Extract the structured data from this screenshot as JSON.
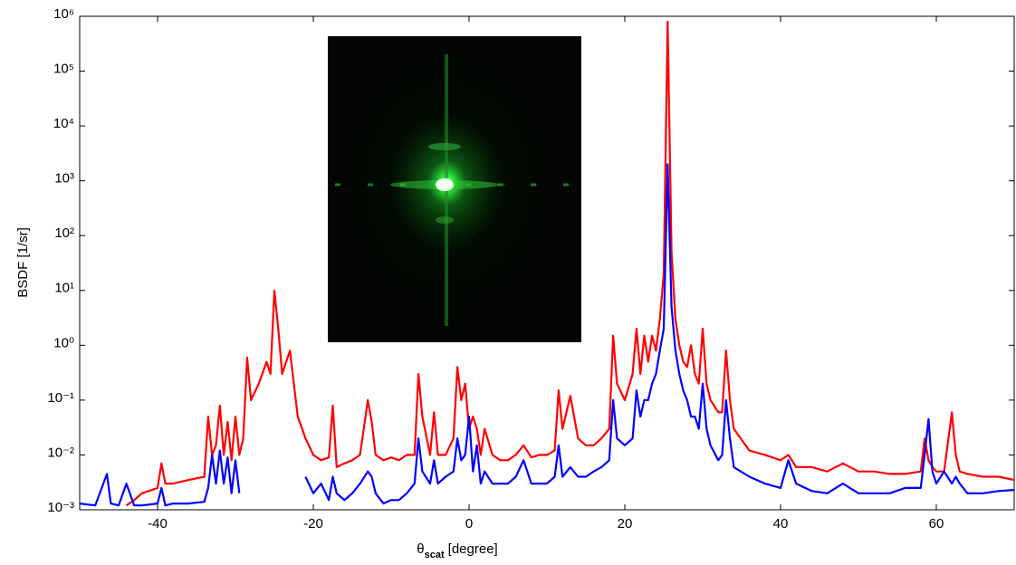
{
  "chart_data": {
    "type": "line",
    "y_label": "BSDF [1/sr]",
    "x_label": {
      "symbol": "θ",
      "subscript": "scat",
      "unit": "[degree]"
    },
    "y_scale": "log",
    "xlim": [
      -50,
      70
    ],
    "xticks": [
      -40,
      -20,
      0,
      20,
      40,
      60
    ],
    "ylim": [
      0.001,
      1000000
    ],
    "yticks": [
      {
        "value": 0.001,
        "label": "10⁻³"
      },
      {
        "value": 0.01,
        "label": "10⁻²"
      },
      {
        "value": 0.1,
        "label": "10⁻¹"
      },
      {
        "value": 1,
        "label": "10⁰"
      },
      {
        "value": 10,
        "label": "10¹"
      },
      {
        "value": 100,
        "label": "10²"
      },
      {
        "value": 1000,
        "label": "10³"
      },
      {
        "value": 10000,
        "label": "10⁴"
      },
      {
        "value": 100000,
        "label": "10⁵"
      },
      {
        "value": 1000000,
        "label": "10⁶"
      }
    ],
    "x": [
      -50,
      -48,
      -46.5,
      -46,
      -45,
      -44,
      -43,
      -42,
      -40,
      -39.5,
      -39,
      -38,
      -36,
      -34,
      -33.5,
      -33,
      -32.5,
      -32,
      -31.5,
      -31,
      -30.5,
      -30,
      -29.5,
      -29,
      -28.5,
      -28,
      -27,
      -26,
      -25.5,
      -25,
      -24.5,
      -24,
      -23,
      -22,
      -21,
      -20,
      -19,
      -18,
      -17.5,
      -17,
      -16,
      -15,
      -14,
      -13,
      -12.5,
      -12,
      -11,
      -10,
      -9,
      -8,
      -7,
      -6.5,
      -6,
      -5,
      -4.5,
      -4,
      -3,
      -2,
      -1.5,
      -1,
      -0.5,
      0,
      0.5,
      1,
      1.5,
      2,
      3,
      4,
      5,
      6,
      7,
      8,
      9,
      10,
      11,
      11.5,
      12,
      13,
      14,
      15,
      16,
      17,
      18,
      18.5,
      19,
      20,
      21,
      21.5,
      22,
      22.5,
      23,
      23.5,
      24,
      24.5,
      25,
      25.5,
      26,
      26.5,
      27,
      27.5,
      28,
      28.5,
      29,
      29.5,
      30,
      30.5,
      31,
      32,
      32.5,
      33,
      33.5,
      34,
      36,
      38,
      40,
      41,
      42,
      44,
      46,
      48,
      50,
      52,
      54,
      56,
      58,
      58.5,
      59,
      59.5,
      60,
      61,
      62,
      62.5,
      63,
      64,
      66,
      68,
      70
    ],
    "series": [
      {
        "color": "#ff0000",
        "values": [
          null,
          null,
          null,
          null,
          null,
          0.0012,
          0.0015,
          0.002,
          0.0025,
          0.007,
          0.003,
          0.003,
          0.0035,
          0.004,
          0.05,
          0.01,
          0.015,
          0.08,
          0.01,
          0.04,
          0.008,
          0.05,
          0.01,
          0.02,
          0.6,
          0.1,
          0.2,
          0.5,
          0.3,
          10,
          2,
          0.3,
          0.8,
          0.05,
          0.02,
          0.01,
          0.008,
          0.009,
          0.08,
          0.006,
          0.007,
          0.008,
          0.01,
          0.1,
          0.04,
          0.01,
          0.008,
          0.009,
          0.008,
          0.01,
          0.01,
          0.3,
          0.05,
          0.01,
          0.06,
          0.01,
          0.01,
          0.02,
          0.4,
          0.1,
          0.2,
          0.03,
          0.05,
          0.03,
          0.01,
          0.03,
          0.01,
          0.008,
          0.008,
          0.01,
          0.015,
          0.009,
          0.01,
          0.01,
          0.012,
          0.15,
          0.03,
          0.12,
          0.02,
          0.015,
          0.015,
          0.02,
          0.03,
          1.5,
          0.2,
          0.1,
          0.3,
          2,
          0.3,
          1.5,
          0.5,
          1.5,
          0.8,
          3,
          20,
          800000,
          50,
          3,
          1,
          0.5,
          0.4,
          1,
          0.3,
          0.2,
          2,
          0.2,
          0.1,
          0.06,
          0.06,
          0.8,
          0.1,
          0.03,
          0.012,
          0.01,
          0.008,
          0.01,
          0.006,
          0.006,
          0.005,
          0.007,
          0.005,
          0.005,
          0.0045,
          0.0045,
          0.005,
          0.02,
          0.008,
          0.006,
          0.005,
          0.005,
          0.06,
          0.01,
          0.005,
          0.0045,
          0.004,
          0.004,
          0.0035
        ]
      },
      {
        "color": "#0000ff",
        "values": [
          0.0013,
          0.0012,
          0.0045,
          0.0013,
          0.0012,
          0.003,
          0.0012,
          0.0012,
          0.0013,
          0.0025,
          0.0012,
          0.0013,
          0.0013,
          0.0014,
          0.0025,
          0.01,
          0.003,
          0.012,
          0.003,
          0.009,
          0.002,
          0.008,
          0.002,
          null,
          null,
          null,
          null,
          null,
          null,
          null,
          null,
          null,
          null,
          null,
          0.004,
          0.002,
          0.003,
          0.0015,
          0.004,
          0.002,
          0.0015,
          0.002,
          0.003,
          0.005,
          0.004,
          0.002,
          0.0013,
          0.0015,
          0.0015,
          0.002,
          0.003,
          0.02,
          0.005,
          0.003,
          0.008,
          0.003,
          0.004,
          0.005,
          0.02,
          0.008,
          0.01,
          0.05,
          0.005,
          0.015,
          0.003,
          0.005,
          0.003,
          0.003,
          0.003,
          0.004,
          0.008,
          0.003,
          0.003,
          0.003,
          0.004,
          0.015,
          0.004,
          0.006,
          0.004,
          0.004,
          0.005,
          0.006,
          0.008,
          0.1,
          0.02,
          0.015,
          0.02,
          0.15,
          0.05,
          0.1,
          0.1,
          0.2,
          0.3,
          0.8,
          2,
          2000,
          5,
          0.8,
          0.3,
          0.15,
          0.1,
          0.05,
          0.05,
          0.03,
          0.2,
          0.03,
          0.015,
          0.008,
          0.01,
          0.1,
          0.02,
          0.006,
          0.004,
          0.003,
          0.0025,
          0.008,
          0.003,
          0.0022,
          0.002,
          0.003,
          0.002,
          0.002,
          0.002,
          0.0025,
          0.0025,
          0.01,
          0.045,
          0.005,
          0.003,
          0.005,
          0.003,
          0.004,
          0.003,
          0.002,
          0.002,
          0.0022,
          0.0023
        ]
      }
    ]
  }
}
